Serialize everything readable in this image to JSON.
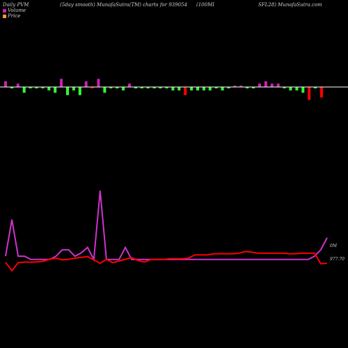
{
  "header": {
    "left": "Daily PVM",
    "middle": "(5day smooth) MunafaSutra(TM) charts for 939054",
    "ticker": "(100MI",
    "right": "SFL28) MunafaSutra.com"
  },
  "legend": {
    "volume_label": "Volume",
    "price_label": "Price"
  },
  "colors": {
    "background": "#000000",
    "up": "#cc1fb0",
    "down": "#33ff33",
    "bar_red": "#ff0000",
    "volume_line": "#cc33cc",
    "price_line": "#ff0000",
    "text": "#cfcfcf",
    "baseline": "#ffffff"
  },
  "chart_data": [
    {
      "type": "bar",
      "name": "volume",
      "values": [
        2,
        0,
        1,
        2,
        0,
        0,
        0,
        1,
        2,
        3,
        3,
        1,
        3,
        2,
        0,
        3,
        2,
        0,
        0,
        1,
        1,
        0,
        0,
        0,
        0,
        0,
        0,
        1,
        1,
        3,
        1,
        1,
        1,
        1,
        0,
        1,
        0,
        0,
        0,
        0,
        0,
        1,
        2,
        1,
        1,
        0,
        1,
        1,
        2,
        5,
        0,
        4
      ],
      "directions": [
        "up",
        "down",
        "up",
        "down",
        "down",
        "down",
        "down",
        "down",
        "down",
        "up",
        "down",
        "down",
        "down",
        "up",
        "red",
        "up",
        "down",
        "down",
        "down",
        "down",
        "up",
        "down",
        "down",
        "down",
        "down",
        "down",
        "down",
        "down",
        "down",
        "red",
        "down",
        "down",
        "down",
        "down",
        "down",
        "down",
        "down",
        "up",
        "up",
        "down",
        "down",
        "up",
        "up",
        "up",
        "up",
        "down",
        "down",
        "down",
        "down",
        "red",
        "down",
        "red"
      ]
    },
    {
      "type": "line",
      "series": [
        {
          "values": [
            0.57,
            3.6,
            0.57,
            0.57,
            0.3,
            0.3,
            0.3,
            0.3,
            0.57,
            1.1,
            1.1,
            0.57,
            0.84,
            1.3,
            0.3,
            6.0,
            0.3,
            0.3,
            0.3,
            1.3,
            0.3,
            0.3,
            0.3,
            0.3,
            0.3,
            0.3,
            0.3,
            0.3,
            0.3,
            0.3,
            0.3,
            0.3,
            0.3,
            0.3,
            0.3,
            0.3,
            0.3,
            0.3,
            0.3,
            0.3,
            0.3,
            0.3,
            0.3,
            0.3,
            0.3,
            0.3,
            0.3,
            0.3,
            0.3,
            0.57,
            1.1,
            2.1
          ]
        },
        {
          "values": [
            977.65,
            977.35,
            977.64,
            977.66,
            977.66,
            977.67,
            977.69,
            977.77,
            977.8,
            977.74,
            977.76,
            977.8,
            977.83,
            977.86,
            977.74,
            977.62,
            977.76,
            977.64,
            977.7,
            977.76,
            977.82,
            977.72,
            977.66,
            977.75,
            977.75,
            977.75,
            977.78,
            977.78,
            977.78,
            977.8,
            977.92,
            977.92,
            977.92,
            977.96,
            977.96,
            977.96,
            977.96,
            977.98,
            978.04,
            978.02,
            977.98,
            977.98,
            977.98,
            977.98,
            977.98,
            977.96,
            977.96,
            977.98,
            977.98,
            977.98,
            977.6,
            977.62
          ]
        }
      ],
      "price_label": "977.70",
      "volume_end_label": "0M"
    }
  ]
}
